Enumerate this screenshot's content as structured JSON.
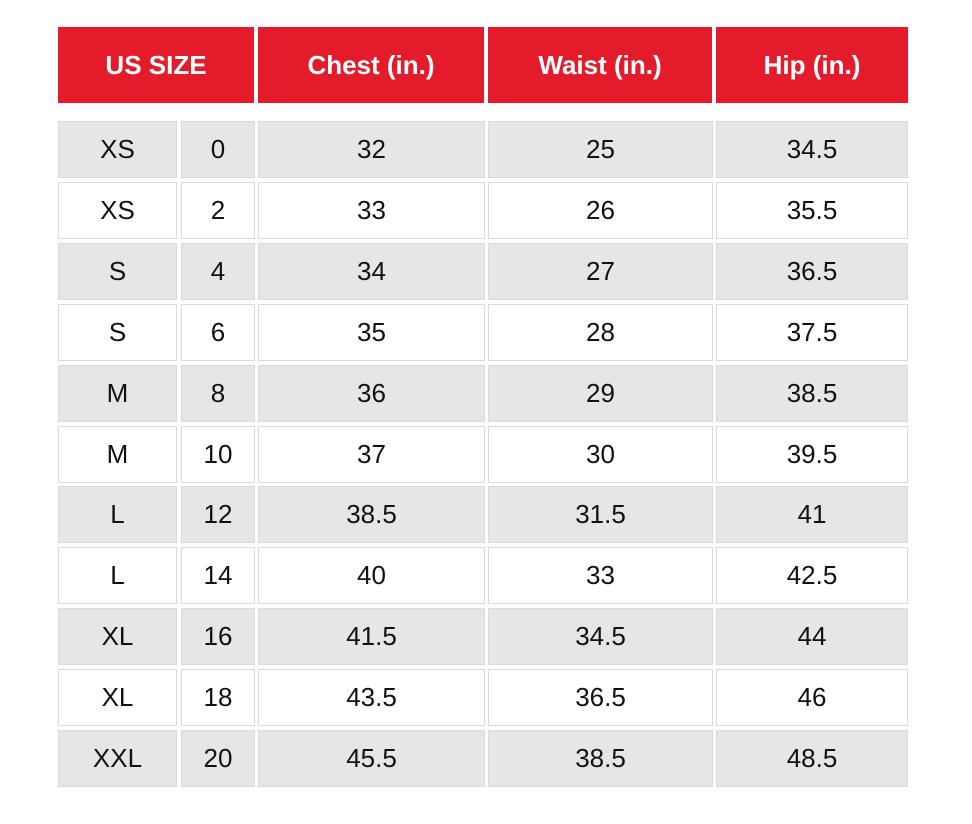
{
  "table": {
    "header": [
      "US SIZE",
      "Chest (in.)",
      "Waist (in.)",
      "Hip (in.)"
    ],
    "rows": [
      [
        "XS",
        "0",
        "32",
        "25",
        "34.5"
      ],
      [
        "XS",
        "2",
        "33",
        "26",
        "35.5"
      ],
      [
        "S",
        "4",
        "34",
        "27",
        "36.5"
      ],
      [
        "S",
        "6",
        "35",
        "28",
        "37.5"
      ],
      [
        "M",
        "8",
        "36",
        "29",
        "38.5"
      ],
      [
        "M",
        "10",
        "37",
        "30",
        "39.5"
      ],
      [
        "L",
        "12",
        "38.5",
        "31.5",
        "41"
      ],
      [
        "L",
        "14",
        "40",
        "33",
        "42.5"
      ],
      [
        "XL",
        "16",
        "41.5",
        "34.5",
        "44"
      ],
      [
        "XL",
        "18",
        "43.5",
        "36.5",
        "46"
      ],
      [
        "XXL",
        "20",
        "45.5",
        "38.5",
        "48.5"
      ]
    ]
  }
}
